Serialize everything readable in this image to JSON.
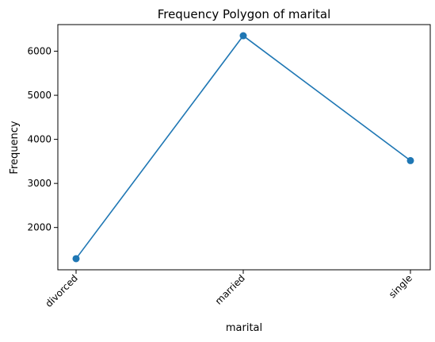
{
  "chart_data": {
    "type": "line",
    "title": "Frequency Polygon of marital",
    "xlabel": "marital",
    "ylabel": "Frequency",
    "categories": [
      "divorced",
      "married",
      "single"
    ],
    "series": [
      {
        "values": [
          1293,
          6351,
          3518
        ],
        "color": "#1f77b4",
        "marker": "circle"
      }
    ],
    "ylim": [
      1040,
      6604
    ],
    "yticks": [
      2000,
      3000,
      4000,
      5000,
      6000
    ],
    "ytick_labels": [
      "2000",
      "3000",
      "4000",
      "5000",
      "6000"
    ],
    "xtick_rotation_deg": -45,
    "grid": false,
    "legend": false
  }
}
